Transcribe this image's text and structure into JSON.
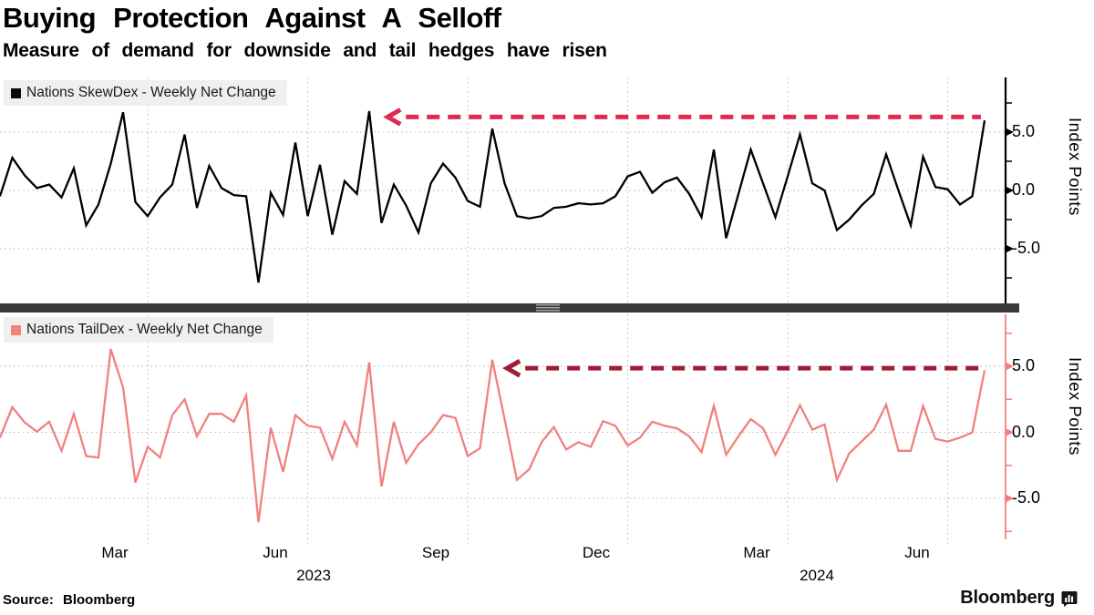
{
  "header": {
    "title": "Buying Protection Against A Selloff",
    "subtitle": "Measure of demand for downside and tail hedges have risen"
  },
  "footer": {
    "source": "Source: Bloomberg"
  },
  "brand": {
    "name": "Bloomberg",
    "icon": "bloomberg-terminal-icon"
  },
  "x_axis": {
    "month_labels": [
      "Mar",
      "Jun",
      "Sep",
      "Dec",
      "Mar",
      "Jun"
    ],
    "year_labels": [
      {
        "text": "2023"
      },
      {
        "text": "2024"
      }
    ],
    "gridline_indices": [
      12,
      25,
      38,
      51,
      64,
      77
    ]
  },
  "chart_data": [
    {
      "type": "line",
      "name": "skewdex",
      "legend": "Nations SkewDex - Weekly Net Change",
      "line_color": "#000000",
      "swatch_color": "#0a0a0a",
      "ylabel": "Index Points",
      "ylim": [
        -9.7,
        9.7
      ],
      "x_unit": "week",
      "grid": true,
      "legend_position": "top-left",
      "yticks": [
        {
          "value": 5,
          "label": "5.0"
        },
        {
          "value": 0,
          "label": "0.0"
        },
        {
          "value": -5,
          "label": "-5.0"
        }
      ],
      "minor_ytick_step": 2.5,
      "values": [
        -0.5,
        2.8,
        1.3,
        0.2,
        0.5,
        -0.6,
        1.9,
        -3.0,
        -1.2,
        2.3,
        6.7,
        -1.0,
        -2.2,
        -0.6,
        0.5,
        4.8,
        -1.5,
        2.1,
        0.2,
        -0.4,
        -0.5,
        -7.9,
        -0.2,
        -2.1,
        4.1,
        -2.2,
        2.2,
        -3.8,
        0.8,
        -0.3,
        6.8,
        -2.8,
        0.5,
        -1.3,
        -3.6,
        0.6,
        2.3,
        1.1,
        -0.9,
        -1.4,
        5.3,
        0.6,
        -2.2,
        -2.4,
        -2.2,
        -1.5,
        -1.4,
        -1.1,
        -1.2,
        -1.1,
        -0.5,
        1.2,
        1.6,
        -0.2,
        0.7,
        1.1,
        -0.3,
        -2.3,
        3.5,
        -4.1,
        -0.3,
        3.5,
        0.6,
        -2.3,
        1.2,
        4.8,
        0.6,
        0.0,
        -3.4,
        -2.5,
        -1.3,
        -0.3,
        3.1,
        0.0,
        -3.0,
        2.9,
        0.3,
        0.1,
        -1.2,
        -0.5,
        6.0
      ],
      "annotation_arrow": {
        "y_value": 6.3,
        "from_index": 31.5,
        "to_index": 79.7,
        "color": "#e02a4e",
        "direction": "left"
      }
    },
    {
      "type": "line",
      "name": "taildex",
      "legend": "Nations TailDex - Weekly Net Change",
      "line_color": "#f0817f",
      "swatch_color": "#f4817f",
      "ylabel": "Index Points",
      "ylim": [
        -8.1,
        8.9
      ],
      "x_unit": "week",
      "grid": true,
      "legend_position": "top-left",
      "yticks": [
        {
          "value": 5,
          "label": "5.0"
        },
        {
          "value": 0,
          "label": "0.0"
        },
        {
          "value": -5,
          "label": "-5.0"
        }
      ],
      "minor_ytick_step": 2.5,
      "values": [
        -0.4,
        1.9,
        0.75,
        0.05,
        0.8,
        -1.4,
        1.4,
        -1.8,
        -1.9,
        6.3,
        3.4,
        -3.8,
        -1.1,
        -1.9,
        1.3,
        2.5,
        -0.3,
        1.4,
        1.4,
        0.8,
        2.8,
        -6.8,
        0.35,
        -3.0,
        1.3,
        0.5,
        0.35,
        -2.0,
        0.8,
        -1.0,
        5.3,
        -4.1,
        0.8,
        -2.3,
        -0.9,
        0.0,
        1.3,
        1.1,
        -1.8,
        -1.2,
        5.5,
        1.0,
        -3.6,
        -2.8,
        -0.75,
        0.4,
        -1.3,
        -0.75,
        -1.1,
        0.85,
        0.5,
        -1.0,
        -0.4,
        0.8,
        0.5,
        0.3,
        -0.3,
        -1.5,
        2.0,
        -1.7,
        -0.3,
        1.0,
        0.3,
        -1.7,
        0.1,
        2.05,
        0.2,
        0.6,
        -3.6,
        -1.6,
        -0.7,
        0.2,
        2.1,
        -1.4,
        -1.4,
        2.0,
        -0.5,
        -0.7,
        -0.4,
        0.0,
        4.7
      ],
      "annotation_arrow": {
        "y_value": 4.85,
        "from_index": 41.2,
        "to_index": 79.7,
        "color": "#9e1d33",
        "direction": "left"
      }
    }
  ]
}
